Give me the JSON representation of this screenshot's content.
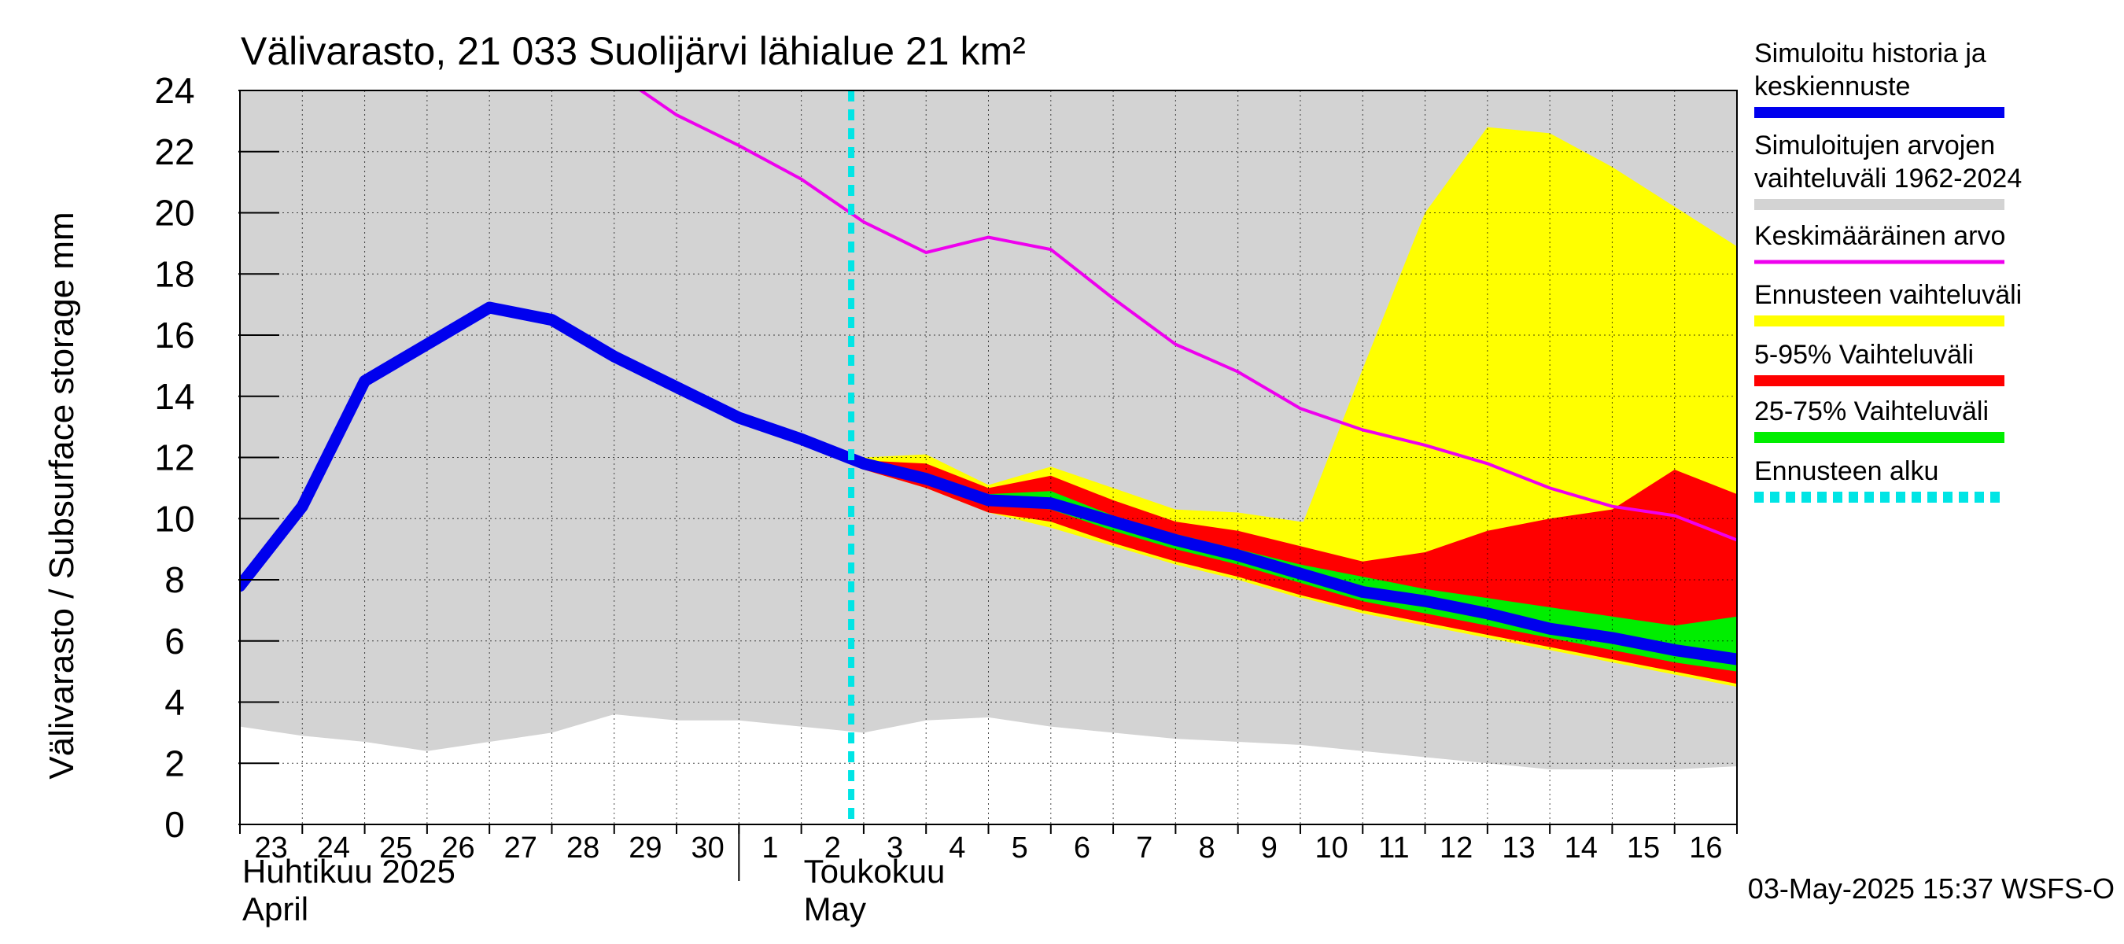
{
  "chart_data": {
    "type": "area",
    "title": "Välivarasto, 21 033 Suolijärvi lähialue 21 km²",
    "ylabel": "Välivarasto / Subsurface storage  mm",
    "ylim": [
      0,
      24
    ],
    "yticks": [
      0,
      2,
      4,
      6,
      8,
      10,
      12,
      14,
      16,
      18,
      20,
      22,
      24
    ],
    "x_start": "2025-04-23",
    "x_end": "2025-05-17",
    "day_labels": [
      "23",
      "24",
      "25",
      "26",
      "27",
      "28",
      "29",
      "30",
      "1",
      "2",
      "3",
      "4",
      "5",
      "6",
      "7",
      "8",
      "9",
      "10",
      "11",
      "12",
      "13",
      "14",
      "15",
      "16"
    ],
    "month_labels": [
      {
        "line1": "Huhtikuu  2025",
        "line2": "April",
        "day": 0
      },
      {
        "line1": "Toukokuu",
        "line2": "May",
        "day": 9
      }
    ],
    "grid": true,
    "legend_position": "right",
    "forecast_start": 9.8,
    "timestamp": "03-May-2025 15:37 WSFS-O",
    "x": [
      0,
      1,
      2,
      3,
      4,
      5,
      6,
      7,
      8,
      9,
      10,
      11,
      12,
      13,
      14,
      15,
      16,
      17,
      18,
      19,
      20,
      21,
      22,
      23,
      24
    ],
    "history_range": {
      "low": [
        3.2,
        2.9,
        2.7,
        2.4,
        2.7,
        3.0,
        3.6,
        3.4,
        3.4,
        3.2,
        3.0,
        3.4,
        3.5,
        3.2,
        3.0,
        2.8,
        2.7,
        2.6,
        2.4,
        2.2,
        2.0,
        1.8,
        1.8,
        1.8,
        1.9
      ],
      "high": [
        24,
        24,
        24,
        24,
        24,
        24,
        24,
        24,
        24,
        24,
        24,
        24,
        24,
        24,
        24,
        24,
        24,
        24,
        24,
        24,
        24,
        24,
        24,
        24,
        24
      ]
    },
    "mean": [
      null,
      null,
      null,
      null,
      null,
      null,
      24.6,
      23.2,
      22.2,
      21.1,
      19.7,
      18.7,
      19.2,
      18.8,
      17.2,
      15.7,
      14.8,
      13.6,
      12.9,
      12.4,
      11.8,
      11.0,
      10.4,
      10.1,
      9.3
    ],
    "simulated": [
      7.8,
      10.4,
      14.5,
      15.7,
      16.9,
      16.5,
      15.3,
      14.3,
      13.3,
      12.6,
      11.8,
      11.3,
      10.6,
      10.5,
      9.9,
      9.3,
      8.8,
      8.2,
      7.6,
      7.3,
      6.9,
      6.4,
      6.1,
      5.7,
      5.4
    ],
    "forecast_range": {
      "x": [
        9.8,
        10,
        11,
        12,
        13,
        14,
        15,
        16,
        17,
        17.05,
        18,
        19,
        20,
        21,
        22,
        23,
        24
      ],
      "low": [
        11.8,
        11.6,
        11.0,
        10.2,
        9.7,
        9.1,
        8.5,
        8.0,
        7.4,
        7.4,
        6.9,
        6.5,
        6.1,
        5.7,
        5.3,
        4.9,
        4.5
      ],
      "high": [
        11.8,
        12.0,
        12.1,
        11.1,
        11.7,
        11.0,
        10.3,
        10.2,
        9.9,
        9.9,
        14.9,
        20.0,
        22.8,
        22.6,
        21.5,
        20.2,
        18.9
      ]
    },
    "p5_95": {
      "x": [
        9.8,
        10,
        11,
        12,
        13,
        14,
        15,
        16,
        17,
        18,
        19,
        20,
        21,
        22,
        23,
        24
      ],
      "low": [
        11.8,
        11.6,
        11.0,
        10.2,
        9.9,
        9.2,
        8.6,
        8.1,
        7.5,
        7.0,
        6.6,
        6.2,
        5.8,
        5.4,
        5.0,
        4.6
      ],
      "high": [
        11.8,
        11.9,
        11.8,
        11.0,
        11.4,
        10.6,
        9.9,
        9.6,
        9.1,
        8.6,
        8.9,
        9.6,
        10.0,
        10.3,
        11.6,
        10.8
      ]
    },
    "p25_75": {
      "x": [
        9.8,
        10,
        11,
        12,
        13,
        14,
        15,
        16,
        17,
        18,
        19,
        20,
        21,
        22,
        23,
        24
      ],
      "low": [
        11.8,
        11.7,
        11.2,
        10.5,
        10.3,
        9.6,
        9.0,
        8.5,
        7.9,
        7.3,
        6.9,
        6.5,
        6.1,
        5.7,
        5.3,
        5.0
      ],
      "high": [
        11.8,
        11.8,
        11.5,
        10.8,
        10.9,
        10.1,
        9.5,
        9.0,
        8.5,
        8.1,
        7.7,
        7.4,
        7.1,
        6.8,
        6.5,
        6.8
      ]
    },
    "legend": [
      {
        "label": "Simuloitu historia ja keskiennuste",
        "color": "#0000ee",
        "style": "thick"
      },
      {
        "label": "Simuloitujen arvojen vaihteluväli 1962-2024",
        "color": "#d3d3d3",
        "style": "thick"
      },
      {
        "label": "Keskimääräinen arvo",
        "color": "#ee00ee",
        "style": "thin"
      },
      {
        "label": "Ennusteen vaihteluväli",
        "color": "#ffff00",
        "style": "thick"
      },
      {
        "label": "5-95% Vaihteluväli",
        "color": "#ff0000",
        "style": "thick"
      },
      {
        "label": "25-75% Vaihteluväli",
        "color": "#00ee00",
        "style": "thick"
      },
      {
        "label": "Ennusteen alku",
        "color": "#00e5e5",
        "style": "dashed"
      }
    ],
    "colors": {
      "history_range": "#d3d3d3",
      "forecast_range": "#ffff00",
      "p5_95": "#ff0000",
      "p25_75": "#00ee00",
      "simulated": "#0000ee",
      "mean": "#ee00ee",
      "forecast_start": "#00e5e5"
    }
  }
}
